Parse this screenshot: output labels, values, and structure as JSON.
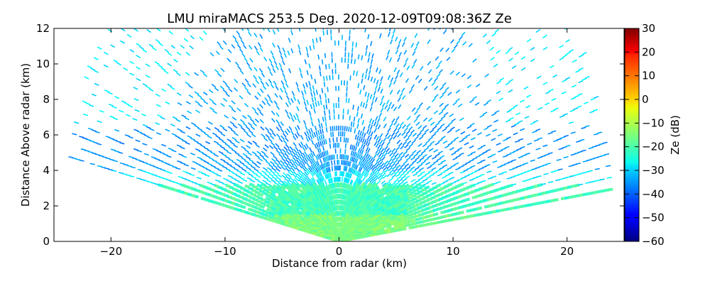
{
  "chart_data": {
    "type": "heatmap",
    "title": "LMU miraMACS 253.5 Deg. 2020-12-09T09:08:36Z  Ze",
    "xlabel": "Distance from radar (km)",
    "ylabel": "Distance Above radar  (km)",
    "xlim": [
      -25,
      25
    ],
    "ylim": [
      0,
      12
    ],
    "x_ticks": [
      "−20",
      "−10",
      "0",
      "10",
      "20"
    ],
    "y_ticks": [
      "0",
      "2",
      "4",
      "6",
      "8",
      "10",
      "12"
    ],
    "grid": false,
    "scan": {
      "sector_deg": [
        7,
        170
      ],
      "max_range_km": 24
    },
    "colorbar": {
      "label": "Ze (dB)",
      "range": [
        -60,
        30
      ],
      "ticks": [
        "−60",
        "−50",
        "−40",
        "−30",
        "−20",
        "−10",
        "0",
        "10",
        "20",
        "30"
      ],
      "colormap": "jet"
    },
    "regions": [
      {
        "description_key": "near-surface layer",
        "height_km": [
          0,
          1.5
        ],
        "ze_db": -18
      },
      {
        "description_key": "cloud layer",
        "height_km": [
          1.5,
          3.5
        ],
        "ze_db": -22
      },
      {
        "description_key": "upper cloud",
        "height_km": [
          3.5,
          6.5
        ],
        "ze_db": -35
      },
      {
        "description_key": "sparse echoes",
        "height_km": [
          6.5,
          12
        ],
        "ze_db": -30
      }
    ]
  }
}
